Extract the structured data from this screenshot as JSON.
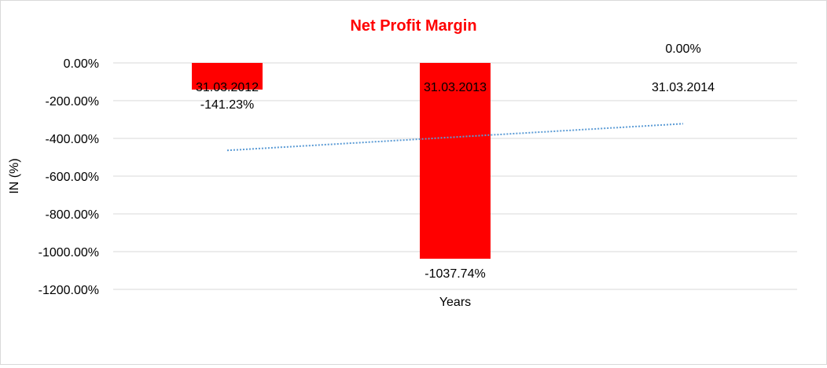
{
  "chart_data": {
    "type": "bar",
    "title": "Net Profit Margin",
    "xlabel": "Years",
    "ylabel": "IN (%)",
    "categories": [
      "31.03.2012",
      "31.03.2013",
      "31.03.2014"
    ],
    "values": [
      -141.23,
      -1037.74,
      0.0
    ],
    "data_labels": [
      "-141.23%",
      "-1037.74%",
      "0.00%"
    ],
    "ylim": [
      -1200,
      0
    ],
    "yticks": [
      0,
      -200,
      -400,
      -600,
      -800,
      -1000,
      -1200
    ],
    "ytick_labels": [
      "0.00%",
      "-200.00%",
      "-400.00%",
      "-600.00%",
      "-800.00%",
      "-1000.00%",
      "-1200.00%"
    ],
    "grid": true,
    "trendline": "linear",
    "colors": {
      "bar": "#FF0000",
      "title": "#FF0000",
      "trendline": "#5B9BD5",
      "grid": "#D9D9D9"
    }
  }
}
